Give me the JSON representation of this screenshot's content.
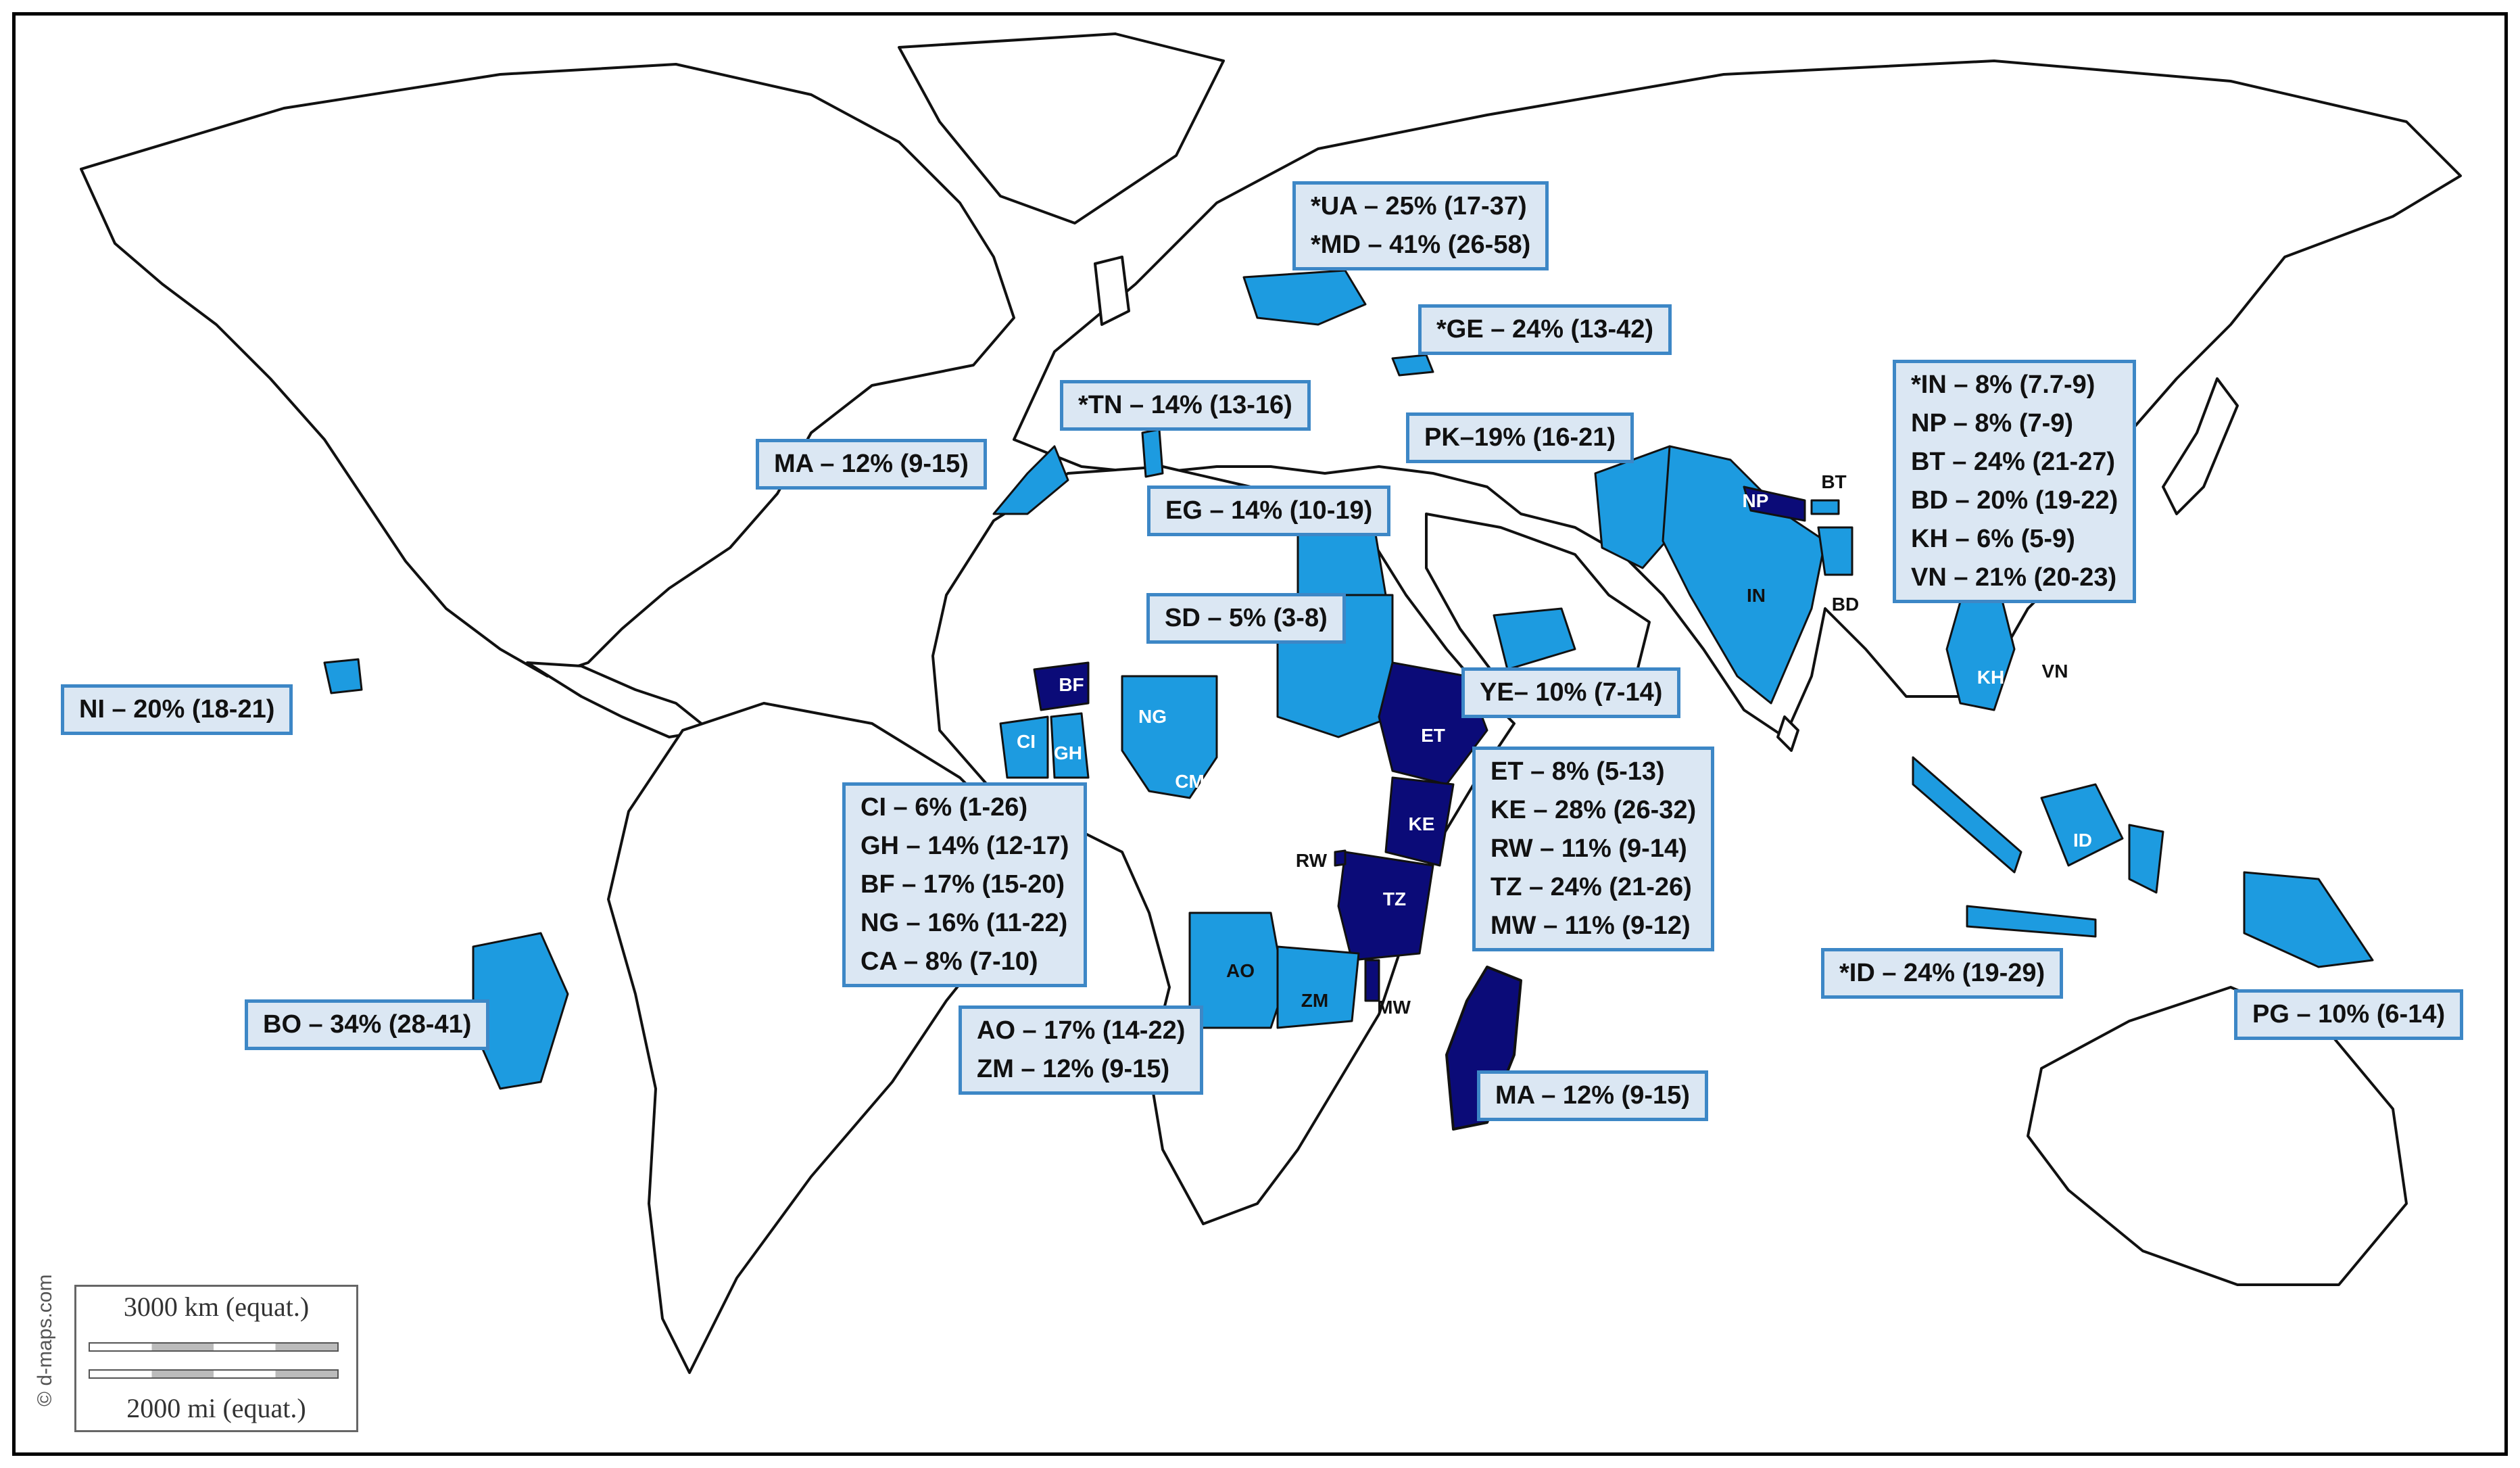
{
  "colors": {
    "high": "#0b0b78",
    "moderate": "#1d9be0",
    "none": "#ffffff",
    "border": "#111111",
    "callout_fill": "#dbe7f3",
    "callout_border": "#3d87c6"
  },
  "callouts": {
    "ua_md": [
      "*UA – 25% (17-37)",
      "*MD – 41% (26-58)"
    ],
    "ge": [
      "*GE – 24% (13-42)"
    ],
    "tn": [
      "*TN – 14% (13-16)"
    ],
    "ma_north": [
      "MA – 12% (9-15)"
    ],
    "pk": [
      "PK–19% (16-21)"
    ],
    "eg": [
      "EG – 14% (10-19)"
    ],
    "sd": [
      "SD – 5% (3-8)"
    ],
    "ye": [
      "YE– 10% (7-14)"
    ],
    "ni": [
      "NI – 20% (18-21)"
    ],
    "west_africa": [
      "CI – 6% (1-26)",
      "GH – 14% (12-17)",
      "BF – 17% (15-20)",
      "NG – 16% (11-22)",
      "CA – 8% (7-10)"
    ],
    "east_africa": [
      "ET – 8% (5-13)",
      "KE – 28% (26-32)",
      "RW – 11% (9-14)",
      "TZ – 24% (21-26)",
      "MW – 11% (9-12)"
    ],
    "south_asia": [
      "*IN – 8% (7.7-9)",
      "NP – 8% (7-9)",
      "BT – 24% (21-27)",
      "BD – 20% (19-22)",
      "KH – 6% (5-9)",
      "VN – 21% (20-23)"
    ],
    "id": [
      "*ID – 24% (19-29)"
    ],
    "pg": [
      "PG – 10% (6-14)"
    ],
    "ao_zm": [
      "AO – 17% (14-22)",
      "ZM – 12% (9-15)"
    ],
    "ma_south": [
      "MA – 12% (9-15)"
    ],
    "bo": [
      "BO – 34% (28-41)"
    ]
  },
  "country_labels": {
    "bf": "BF",
    "ci": "CI",
    "gh": "GH",
    "ng": "NG",
    "cm": "CM",
    "et": "ET",
    "ke": "KE",
    "rw": "RW",
    "tz": "TZ",
    "ao": "AO",
    "zm": "ZM",
    "mw": "MW",
    "np": "NP",
    "bt": "BT",
    "in": "IN",
    "bd": "BD",
    "kh": "KH",
    "vn": "VN",
    "id": "ID"
  },
  "scale": {
    "km": "3000 km (equat.)",
    "mi": "2000 mi (equat.)"
  },
  "credit": "© d-maps.com"
}
